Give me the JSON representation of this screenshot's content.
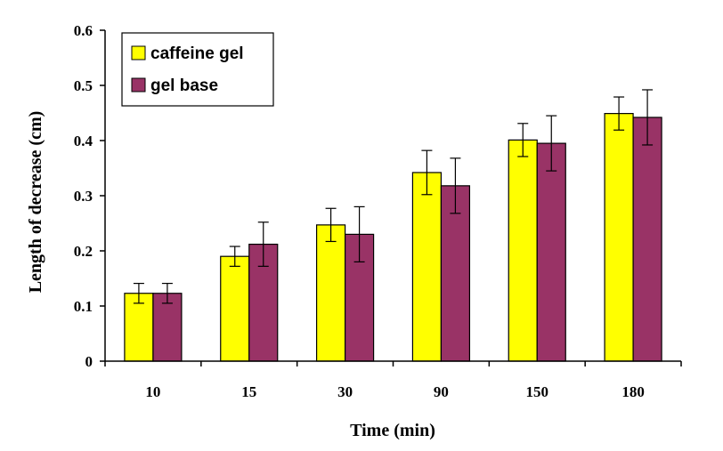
{
  "chart_data": {
    "type": "bar",
    "title": "",
    "xlabel": "Time (min)",
    "ylabel": "Length of decrease (cm)",
    "categories": [
      "10",
      "15",
      "30",
      "90",
      "150",
      "180"
    ],
    "ylim": [
      0,
      0.6
    ],
    "yticks": [
      "0",
      "0.1",
      "0.2",
      "0.3",
      "0.4",
      "0.5",
      "0.6"
    ],
    "grid": false,
    "legend_position": "top-left",
    "series": [
      {
        "name": "caffeine gel",
        "color": "#ffff00",
        "values": [
          0.123,
          0.19,
          0.247,
          0.342,
          0.401,
          0.449
        ],
        "errors": [
          0.018,
          0.018,
          0.03,
          0.04,
          0.03,
          0.03
        ]
      },
      {
        "name": "gel base",
        "color": "#993366",
        "values": [
          0.123,
          0.212,
          0.23,
          0.318,
          0.395,
          0.442
        ],
        "errors": [
          0.018,
          0.04,
          0.05,
          0.05,
          0.05,
          0.05
        ]
      }
    ]
  }
}
